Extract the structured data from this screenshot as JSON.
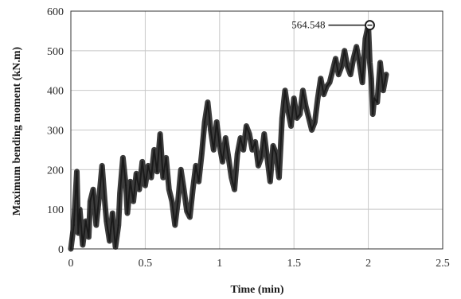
{
  "chart_data": {
    "type": "line",
    "title": "",
    "xlabel": "Time (min)",
    "ylabel": "Maximum bending moment (kN.m)",
    "xlim": [
      0,
      2.5
    ],
    "ylim": [
      0,
      600
    ],
    "x_ticks": [
      "0",
      "0.5",
      "1",
      "1.5",
      "2",
      "2.5"
    ],
    "y_ticks": [
      "0",
      "100",
      "200",
      "300",
      "400",
      "500",
      "600"
    ],
    "grid": true,
    "legend": "none",
    "series": [
      {
        "color": "#1a1a1a",
        "x": [
          0.0,
          0.02,
          0.04,
          0.05,
          0.06,
          0.08,
          0.1,
          0.12,
          0.13,
          0.15,
          0.17,
          0.19,
          0.21,
          0.23,
          0.24,
          0.26,
          0.28,
          0.3,
          0.32,
          0.33,
          0.35,
          0.37,
          0.38,
          0.4,
          0.42,
          0.44,
          0.46,
          0.48,
          0.5,
          0.52,
          0.54,
          0.56,
          0.58,
          0.6,
          0.62,
          0.64,
          0.66,
          0.68,
          0.7,
          0.72,
          0.74,
          0.76,
          0.78,
          0.8,
          0.82,
          0.84,
          0.86,
          0.88,
          0.9,
          0.92,
          0.94,
          0.96,
          0.98,
          1.0,
          1.02,
          1.04,
          1.06,
          1.08,
          1.1,
          1.12,
          1.14,
          1.16,
          1.18,
          1.2,
          1.22,
          1.24,
          1.26,
          1.28,
          1.3,
          1.32,
          1.34,
          1.36,
          1.38,
          1.4,
          1.42,
          1.44,
          1.46,
          1.48,
          1.5,
          1.52,
          1.54,
          1.56,
          1.58,
          1.6,
          1.62,
          1.64,
          1.66,
          1.68,
          1.7,
          1.72,
          1.74,
          1.76,
          1.78,
          1.8,
          1.82,
          1.84,
          1.86,
          1.88,
          1.9,
          1.92,
          1.94,
          1.96,
          1.98,
          2.0,
          2.01,
          2.02,
          2.03,
          2.04,
          2.06,
          2.08,
          2.1,
          2.12
        ],
        "y": [
          0,
          60,
          195,
          40,
          100,
          10,
          70,
          30,
          120,
          150,
          60,
          130,
          210,
          110,
          70,
          20,
          90,
          5,
          60,
          140,
          230,
          160,
          90,
          170,
          120,
          190,
          150,
          220,
          160,
          210,
          180,
          250,
          195,
          290,
          180,
          230,
          150,
          120,
          60,
          120,
          200,
          150,
          95,
          80,
          150,
          210,
          170,
          240,
          320,
          370,
          300,
          250,
          320,
          260,
          220,
          280,
          230,
          180,
          150,
          240,
          280,
          250,
          310,
          290,
          250,
          270,
          210,
          230,
          290,
          230,
          170,
          260,
          240,
          180,
          330,
          400,
          350,
          310,
          380,
          330,
          340,
          400,
          360,
          330,
          300,
          320,
          380,
          430,
          390,
          410,
          420,
          450,
          480,
          440,
          460,
          500,
          460,
          440,
          480,
          510,
          470,
          420,
          530,
          564.548,
          470,
          430,
          340,
          380,
          370,
          470,
          400,
          440
        ]
      }
    ],
    "annotation": {
      "label": "564.548",
      "x": 2.01,
      "y": 564.548
    }
  }
}
